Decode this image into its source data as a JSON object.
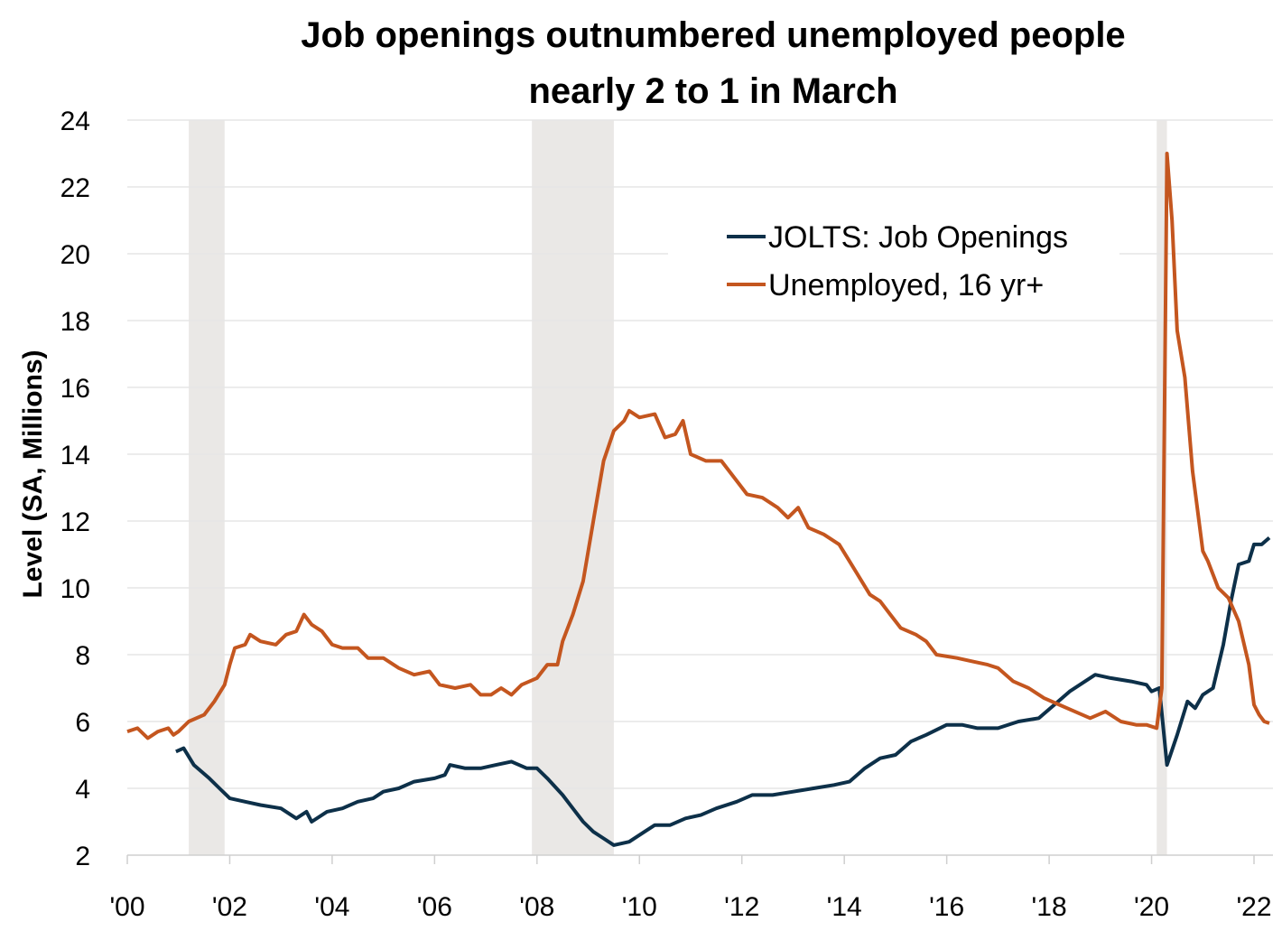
{
  "chart_data": {
    "type": "line",
    "title": [
      "Job openings outnumbered unemployed people",
      "nearly 2 to 1 in March"
    ],
    "xlabel": "",
    "ylabel": "Level (SA, Millions)",
    "xlim": [
      2000,
      2022.4
    ],
    "ylim": [
      2,
      24
    ],
    "yticks": [
      2,
      4,
      6,
      8,
      10,
      12,
      14,
      16,
      18,
      20,
      22,
      24
    ],
    "xticks": [
      {
        "value": 2000,
        "label": "'00"
      },
      {
        "value": 2002,
        "label": "'02"
      },
      {
        "value": 2004,
        "label": "'04"
      },
      {
        "value": 2006,
        "label": "'06"
      },
      {
        "value": 2008,
        "label": "'08"
      },
      {
        "value": 2010,
        "label": "'10"
      },
      {
        "value": 2012,
        "label": "'12"
      },
      {
        "value": 2014,
        "label": "'14"
      },
      {
        "value": 2016,
        "label": "'16"
      },
      {
        "value": 2018,
        "label": "'18"
      },
      {
        "value": 2020,
        "label": "'20"
      },
      {
        "value": 2022,
        "label": "'22"
      }
    ],
    "grid": true,
    "legend_position": "top-right",
    "recessions": [
      [
        2001.2,
        2001.9
      ],
      [
        2007.9,
        2009.5
      ],
      [
        2020.1,
        2020.3
      ]
    ],
    "series": [
      {
        "name": "JOLTS: Job Openings",
        "color": "#0d3049",
        "points": [
          [
            2000.95,
            5.1
          ],
          [
            2001.1,
            5.2
          ],
          [
            2001.3,
            4.7
          ],
          [
            2001.6,
            4.3
          ],
          [
            2001.8,
            4.0
          ],
          [
            2002.0,
            3.7
          ],
          [
            2002.3,
            3.6
          ],
          [
            2002.6,
            3.5
          ],
          [
            2003.0,
            3.4
          ],
          [
            2003.3,
            3.1
          ],
          [
            2003.5,
            3.3
          ],
          [
            2003.6,
            3.0
          ],
          [
            2003.9,
            3.3
          ],
          [
            2004.2,
            3.4
          ],
          [
            2004.5,
            3.6
          ],
          [
            2004.8,
            3.7
          ],
          [
            2005.0,
            3.9
          ],
          [
            2005.3,
            4.0
          ],
          [
            2005.6,
            4.2
          ],
          [
            2006.0,
            4.3
          ],
          [
            2006.2,
            4.4
          ],
          [
            2006.3,
            4.7
          ],
          [
            2006.6,
            4.6
          ],
          [
            2006.9,
            4.6
          ],
          [
            2007.2,
            4.7
          ],
          [
            2007.5,
            4.8
          ],
          [
            2007.8,
            4.6
          ],
          [
            2008.0,
            4.6
          ],
          [
            2008.2,
            4.3
          ],
          [
            2008.5,
            3.8
          ],
          [
            2008.7,
            3.4
          ],
          [
            2008.9,
            3.0
          ],
          [
            2009.1,
            2.7
          ],
          [
            2009.3,
            2.5
          ],
          [
            2009.5,
            2.3
          ],
          [
            2009.8,
            2.4
          ],
          [
            2010.1,
            2.7
          ],
          [
            2010.3,
            2.9
          ],
          [
            2010.6,
            2.9
          ],
          [
            2010.9,
            3.1
          ],
          [
            2011.2,
            3.2
          ],
          [
            2011.5,
            3.4
          ],
          [
            2011.9,
            3.6
          ],
          [
            2012.2,
            3.8
          ],
          [
            2012.6,
            3.8
          ],
          [
            2013.0,
            3.9
          ],
          [
            2013.4,
            4.0
          ],
          [
            2013.8,
            4.1
          ],
          [
            2014.1,
            4.2
          ],
          [
            2014.4,
            4.6
          ],
          [
            2014.7,
            4.9
          ],
          [
            2015.0,
            5.0
          ],
          [
            2015.3,
            5.4
          ],
          [
            2015.6,
            5.6
          ],
          [
            2016.0,
            5.9
          ],
          [
            2016.3,
            5.9
          ],
          [
            2016.6,
            5.8
          ],
          [
            2017.0,
            5.8
          ],
          [
            2017.4,
            6.0
          ],
          [
            2017.8,
            6.1
          ],
          [
            2018.1,
            6.5
          ],
          [
            2018.4,
            6.9
          ],
          [
            2018.7,
            7.2
          ],
          [
            2018.9,
            7.4
          ],
          [
            2019.2,
            7.3
          ],
          [
            2019.6,
            7.2
          ],
          [
            2019.9,
            7.1
          ],
          [
            2020.0,
            6.9
          ],
          [
            2020.15,
            7.0
          ],
          [
            2020.3,
            4.7
          ],
          [
            2020.5,
            5.6
          ],
          [
            2020.7,
            6.6
          ],
          [
            2020.85,
            6.4
          ],
          [
            2021.0,
            6.8
          ],
          [
            2021.2,
            7.0
          ],
          [
            2021.4,
            8.3
          ],
          [
            2021.55,
            9.6
          ],
          [
            2021.7,
            10.7
          ],
          [
            2021.9,
            10.8
          ],
          [
            2022.0,
            11.3
          ],
          [
            2022.15,
            11.3
          ],
          [
            2022.3,
            11.5
          ]
        ]
      },
      {
        "name": "Unemployed, 16 yr+",
        "color": "#c4561f",
        "points": [
          [
            2000.0,
            5.7
          ],
          [
            2000.2,
            5.8
          ],
          [
            2000.4,
            5.5
          ],
          [
            2000.6,
            5.7
          ],
          [
            2000.8,
            5.8
          ],
          [
            2000.9,
            5.6
          ],
          [
            2001.0,
            5.7
          ],
          [
            2001.2,
            6.0
          ],
          [
            2001.5,
            6.2
          ],
          [
            2001.7,
            6.6
          ],
          [
            2001.9,
            7.1
          ],
          [
            2002.0,
            7.7
          ],
          [
            2002.1,
            8.2
          ],
          [
            2002.3,
            8.3
          ],
          [
            2002.4,
            8.6
          ],
          [
            2002.6,
            8.4
          ],
          [
            2002.9,
            8.3
          ],
          [
            2003.1,
            8.6
          ],
          [
            2003.3,
            8.7
          ],
          [
            2003.45,
            9.2
          ],
          [
            2003.6,
            8.9
          ],
          [
            2003.8,
            8.7
          ],
          [
            2004.0,
            8.3
          ],
          [
            2004.2,
            8.2
          ],
          [
            2004.5,
            8.2
          ],
          [
            2004.7,
            7.9
          ],
          [
            2005.0,
            7.9
          ],
          [
            2005.3,
            7.6
          ],
          [
            2005.6,
            7.4
          ],
          [
            2005.9,
            7.5
          ],
          [
            2006.1,
            7.1
          ],
          [
            2006.4,
            7.0
          ],
          [
            2006.7,
            7.1
          ],
          [
            2006.9,
            6.8
          ],
          [
            2007.1,
            6.8
          ],
          [
            2007.3,
            7.0
          ],
          [
            2007.5,
            6.8
          ],
          [
            2007.7,
            7.1
          ],
          [
            2008.0,
            7.3
          ],
          [
            2008.2,
            7.7
          ],
          [
            2008.4,
            7.7
          ],
          [
            2008.5,
            8.4
          ],
          [
            2008.7,
            9.2
          ],
          [
            2008.9,
            10.2
          ],
          [
            2009.1,
            12.0
          ],
          [
            2009.3,
            13.8
          ],
          [
            2009.5,
            14.7
          ],
          [
            2009.7,
            15.0
          ],
          [
            2009.8,
            15.3
          ],
          [
            2010.0,
            15.1
          ],
          [
            2010.3,
            15.2
          ],
          [
            2010.5,
            14.5
          ],
          [
            2010.7,
            14.6
          ],
          [
            2010.85,
            15.0
          ],
          [
            2011.0,
            14.0
          ],
          [
            2011.3,
            13.8
          ],
          [
            2011.6,
            13.8
          ],
          [
            2011.9,
            13.2
          ],
          [
            2012.1,
            12.8
          ],
          [
            2012.4,
            12.7
          ],
          [
            2012.7,
            12.4
          ],
          [
            2012.9,
            12.1
          ],
          [
            2013.1,
            12.4
          ],
          [
            2013.3,
            11.8
          ],
          [
            2013.6,
            11.6
          ],
          [
            2013.9,
            11.3
          ],
          [
            2014.1,
            10.8
          ],
          [
            2014.3,
            10.3
          ],
          [
            2014.5,
            9.8
          ],
          [
            2014.7,
            9.6
          ],
          [
            2014.9,
            9.2
          ],
          [
            2015.1,
            8.8
          ],
          [
            2015.4,
            8.6
          ],
          [
            2015.6,
            8.4
          ],
          [
            2015.8,
            8.0
          ],
          [
            2016.2,
            7.9
          ],
          [
            2016.5,
            7.8
          ],
          [
            2016.8,
            7.7
          ],
          [
            2017.0,
            7.6
          ],
          [
            2017.3,
            7.2
          ],
          [
            2017.6,
            7.0
          ],
          [
            2017.9,
            6.7
          ],
          [
            2018.2,
            6.5
          ],
          [
            2018.5,
            6.3
          ],
          [
            2018.8,
            6.1
          ],
          [
            2019.1,
            6.3
          ],
          [
            2019.4,
            6.0
          ],
          [
            2019.7,
            5.9
          ],
          [
            2019.9,
            5.9
          ],
          [
            2020.1,
            5.8
          ],
          [
            2020.2,
            7.0
          ],
          [
            2020.3,
            23.0
          ],
          [
            2020.4,
            21.0
          ],
          [
            2020.5,
            17.7
          ],
          [
            2020.65,
            16.3
          ],
          [
            2020.8,
            13.5
          ],
          [
            2021.0,
            11.1
          ],
          [
            2021.1,
            10.8
          ],
          [
            2021.3,
            10.0
          ],
          [
            2021.5,
            9.7
          ],
          [
            2021.7,
            9.0
          ],
          [
            2021.9,
            7.7
          ],
          [
            2022.0,
            6.5
          ],
          [
            2022.1,
            6.2
          ],
          [
            2022.2,
            6.0
          ],
          [
            2022.3,
            5.95
          ]
        ]
      }
    ]
  }
}
